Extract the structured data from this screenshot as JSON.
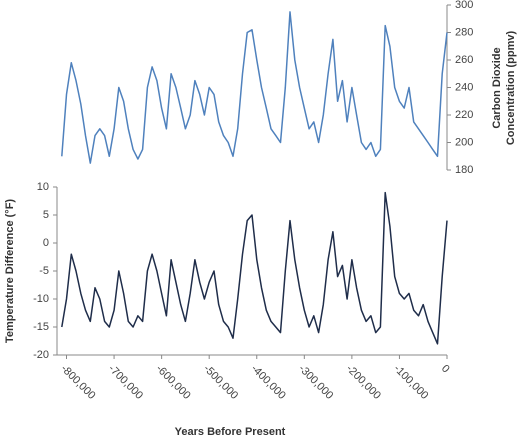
{
  "chart_data": [
    {
      "type": "line",
      "ylabel": [
        "Carbon Dioxide",
        "Concentration (ppmv)"
      ],
      "yaxis_side": "right",
      "color": "#4f81bd",
      "x": [
        -810000,
        -800000,
        -790000,
        -780000,
        -770000,
        -760000,
        -750000,
        -740000,
        -730000,
        -720000,
        -710000,
        -700000,
        -690000,
        -680000,
        -670000,
        -660000,
        -650000,
        -640000,
        -630000,
        -620000,
        -610000,
        -600000,
        -590000,
        -580000,
        -570000,
        -560000,
        -550000,
        -540000,
        -530000,
        -520000,
        -510000,
        -500000,
        -490000,
        -480000,
        -470000,
        -460000,
        -450000,
        -440000,
        -430000,
        -420000,
        -410000,
        -400000,
        -390000,
        -380000,
        -370000,
        -360000,
        -350000,
        -340000,
        -330000,
        -320000,
        -310000,
        -300000,
        -290000,
        -280000,
        -270000,
        -260000,
        -250000,
        -240000,
        -230000,
        -220000,
        -210000,
        -200000,
        -190000,
        -180000,
        -170000,
        -160000,
        -150000,
        -140000,
        -130000,
        -120000,
        -110000,
        -100000,
        -90000,
        -80000,
        -70000,
        -60000,
        -50000,
        -40000,
        -30000,
        -20000,
        -10000,
        0
      ],
      "values": [
        190,
        235,
        258,
        245,
        228,
        205,
        185,
        205,
        210,
        205,
        190,
        210,
        240,
        230,
        210,
        195,
        188,
        195,
        240,
        255,
        245,
        225,
        210,
        250,
        240,
        225,
        210,
        220,
        245,
        235,
        220,
        240,
        235,
        215,
        205,
        200,
        190,
        210,
        250,
        280,
        282,
        260,
        240,
        225,
        210,
        205,
        200,
        240,
        295,
        260,
        240,
        225,
        210,
        215,
        200,
        220,
        250,
        275,
        230,
        245,
        215,
        240,
        220,
        200,
        195,
        200,
        190,
        195,
        285,
        270,
        240,
        230,
        225,
        240,
        215,
        210,
        205,
        200,
        195,
        190,
        250,
        280
      ],
      "xlim": [
        -820000,
        0
      ],
      "ylim": [
        180,
        300
      ],
      "yticks": [
        180,
        200,
        220,
        240,
        260,
        280,
        300
      ]
    },
    {
      "type": "line",
      "ylabel": "Temperature Difference (°F)",
      "xlabel": "Years Before Present",
      "yaxis_side": "left",
      "color": "#1f2d4a",
      "x": [
        -810000,
        -800000,
        -790000,
        -780000,
        -770000,
        -760000,
        -750000,
        -740000,
        -730000,
        -720000,
        -710000,
        -700000,
        -690000,
        -680000,
        -670000,
        -660000,
        -650000,
        -640000,
        -630000,
        -620000,
        -610000,
        -600000,
        -590000,
        -580000,
        -570000,
        -560000,
        -550000,
        -540000,
        -530000,
        -520000,
        -510000,
        -500000,
        -490000,
        -480000,
        -470000,
        -460000,
        -450000,
        -440000,
        -430000,
        -420000,
        -410000,
        -400000,
        -390000,
        -380000,
        -370000,
        -360000,
        -350000,
        -340000,
        -330000,
        -320000,
        -310000,
        -300000,
        -290000,
        -280000,
        -270000,
        -260000,
        -250000,
        -240000,
        -230000,
        -220000,
        -210000,
        -200000,
        -190000,
        -180000,
        -170000,
        -160000,
        -150000,
        -140000,
        -130000,
        -120000,
        -110000,
        -100000,
        -90000,
        -80000,
        -70000,
        -60000,
        -50000,
        -40000,
        -30000,
        -20000,
        -10000,
        0
      ],
      "values": [
        -15,
        -10,
        -2,
        -5,
        -9,
        -12,
        -14,
        -8,
        -10,
        -14,
        -15,
        -12,
        -5,
        -9,
        -14,
        -15,
        -13,
        -14,
        -5,
        -2,
        -5,
        -9,
        -13,
        -3,
        -7,
        -11,
        -14,
        -9,
        -3,
        -7,
        -10,
        -7,
        -5,
        -11,
        -14,
        -15,
        -17,
        -10,
        -2,
        4,
        5,
        -3,
        -8,
        -12,
        -14,
        -15,
        -16,
        -5,
        4,
        -3,
        -8,
        -12,
        -15,
        -13,
        -16,
        -11,
        -3,
        2,
        -6,
        -4,
        -10,
        -3,
        -8,
        -12,
        -14,
        -13,
        -16,
        -15,
        9,
        3,
        -6,
        -9,
        -10,
        -9,
        -12,
        -13,
        -11,
        -14,
        -16,
        -18,
        -6,
        4
      ],
      "xlim": [
        -820000,
        0
      ],
      "ylim": [
        -20,
        10
      ],
      "yticks": [
        -20,
        -15,
        -10,
        -5,
        0,
        5,
        10
      ],
      "xticks": [
        {
          "value": -800000,
          "label": "-800,000"
        },
        {
          "value": -700000,
          "label": "-700,000"
        },
        {
          "value": -600000,
          "label": "-600,000"
        },
        {
          "value": -500000,
          "label": "-500,000"
        },
        {
          "value": -400000,
          "label": "-400,000"
        },
        {
          "value": -300000,
          "label": "-300,000"
        },
        {
          "value": -200000,
          "label": "-200,000"
        },
        {
          "value": -100000,
          "label": "-100,000"
        },
        0
      ]
    }
  ]
}
